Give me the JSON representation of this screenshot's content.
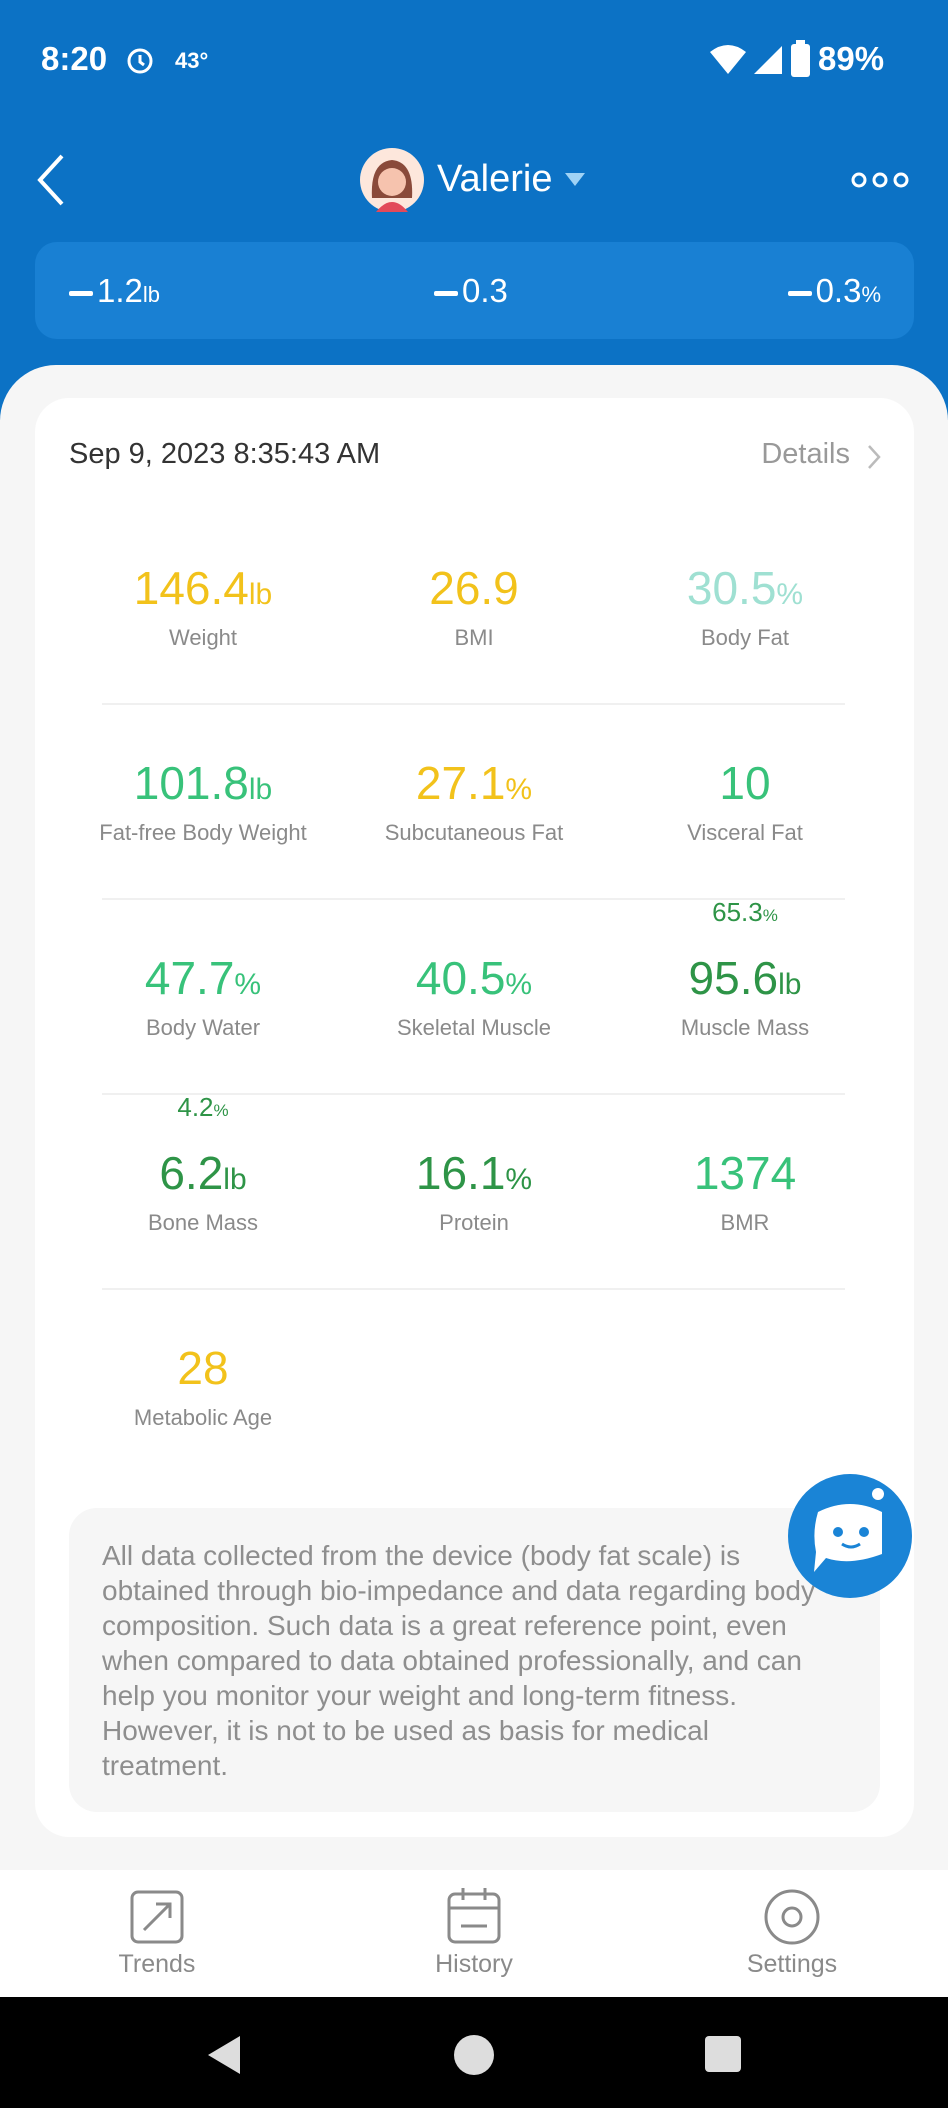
{
  "status_bar": {
    "time": "8:20",
    "temperature": "43°",
    "battery": "89%"
  },
  "header": {
    "name": "Valerie"
  },
  "summary": [
    {
      "value": "1.2",
      "unit": "lb"
    },
    {
      "value": "0.3"
    },
    {
      "value": "0.3",
      "unit": "%"
    }
  ],
  "record": {
    "date": "Sep 9, 2023 8:35:43 AM",
    "details": "Details"
  },
  "metrics": [
    {
      "value": "146.4",
      "unit": "lb",
      "label": "Weight",
      "color": "#f2c21b"
    },
    {
      "value": "26.9",
      "label": "BMI",
      "color": "#f2c21b"
    },
    {
      "value": "30.5",
      "unit": "%",
      "label": "Body Fat",
      "color": "#9fe0d2"
    },
    {
      "value": "101.8",
      "unit": "lb",
      "label": "Fat-free Body Weight",
      "color": "#38c27a"
    },
    {
      "value": "27.1",
      "unit": "%",
      "label": "Subcutaneous Fat",
      "color": "#f2c21b"
    },
    {
      "value": "10",
      "label": "Visceral Fat",
      "color": "#38c27a"
    },
    {
      "value": "47.7",
      "unit": "%",
      "label": "Body Water",
      "color": "#38c27a"
    },
    {
      "value": "40.5",
      "unit": "%",
      "label": "Skeletal Muscle",
      "color": "#38c27a"
    },
    {
      "value": "95.6",
      "unit": "lb",
      "label": "Muscle Mass",
      "color": "#2e9447",
      "sub": {
        "value": "65.3",
        "unit": "%"
      }
    },
    {
      "value": "6.2",
      "unit": "lb",
      "label": "Bone Mass",
      "color": "#2e9447",
      "sub": {
        "value": "4.2",
        "unit": "%"
      }
    },
    {
      "value": "16.1",
      "unit": "%",
      "label": "Protein",
      "color": "#2e9447"
    },
    {
      "value": "1374",
      "label": "BMR",
      "color": "#38c27a"
    },
    {
      "value": "28",
      "label": "Metabolic Age",
      "color": "#f2c21b"
    }
  ],
  "disclaimer": "All data collected from the device (body fat scale) is obtained through bio-impedance and data regarding body composition. Such data is a great reference point, even when compared to data obtained professionally, and can help you monitor your weight and long-term fitness. However, it is not to be used as basis for medical treatment.",
  "nav": [
    "Trends",
    "History",
    "Settings"
  ]
}
